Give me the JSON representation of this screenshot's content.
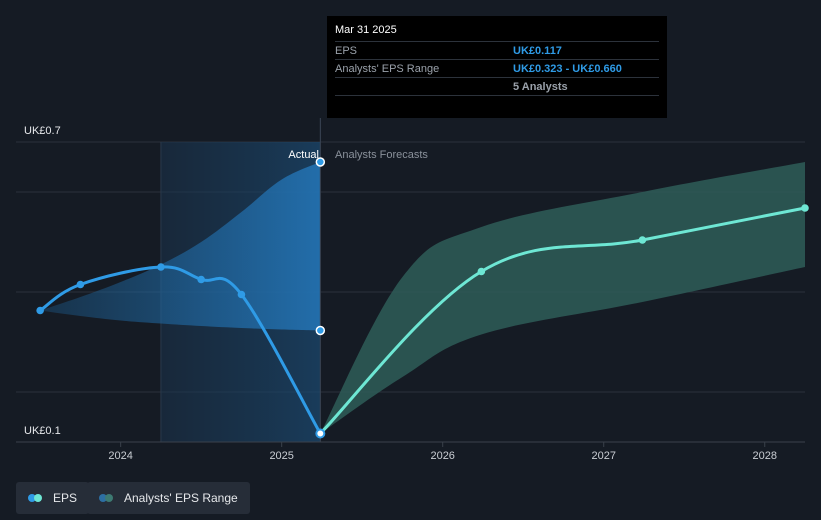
{
  "chart_data": {
    "type": "line",
    "y_axis": {
      "range": [
        0.1,
        0.7
      ],
      "tick_labels": [
        "UK£0.7",
        "UK£0.1"
      ]
    },
    "x_axis": {
      "range": [
        2023.35,
        2028.25
      ],
      "ticks": [
        2024,
        2025,
        2026,
        2027,
        2028
      ],
      "tick_labels": [
        "2024",
        "2025",
        "2026",
        "2027",
        "2028"
      ]
    },
    "grid": true,
    "region_labels": {
      "actual": "Actual",
      "forecast": "Analysts Forecasts"
    },
    "divider_x": 2025.24,
    "series": [
      {
        "name": "EPS",
        "color": "#2f9be6",
        "points": [
          {
            "x": 2023.5,
            "y": 0.363
          },
          {
            "x": 2023.75,
            "y": 0.415
          },
          {
            "x": 2024.25,
            "y": 0.45
          },
          {
            "x": 2024.5,
            "y": 0.425
          },
          {
            "x": 2024.75,
            "y": 0.395
          },
          {
            "x": 2025.24,
            "y": 0.117
          }
        ]
      },
      {
        "name": "EPS Forecast",
        "color": "#6ee7d4",
        "points": [
          {
            "x": 2025.24,
            "y": 0.117
          },
          {
            "x": 2026.24,
            "y": 0.441
          },
          {
            "x": 2027.24,
            "y": 0.504
          },
          {
            "x": 2028.25,
            "y": 0.568
          }
        ]
      }
    ],
    "historical_range": {
      "x": [
        2023.5,
        2023.75,
        2024.0,
        2024.25,
        2024.5,
        2024.75,
        2025.0,
        2025.24
      ],
      "upper": [
        0.363,
        0.39,
        0.42,
        0.455,
        0.5,
        0.56,
        0.625,
        0.66
      ],
      "lower": [
        0.363,
        0.352,
        0.343,
        0.337,
        0.332,
        0.328,
        0.325,
        0.323
      ]
    },
    "forecast_range": {
      "x": [
        2025.24,
        2025.75,
        2026.24,
        2027.24,
        2028.25
      ],
      "upper": [
        0.117,
        0.43,
        0.53,
        0.6,
        0.66
      ],
      "lower": [
        0.117,
        0.23,
        0.315,
        0.38,
        0.45
      ]
    },
    "highlight_band": [
      2024.25,
      2025.24
    ],
    "marker_points": [
      {
        "x": 2025.24,
        "y": 0.66
      },
      {
        "x": 2025.24,
        "y": 0.323
      }
    ],
    "legend": [
      {
        "label": "EPS",
        "colors": [
          "#2f9be6",
          "#6ee7d4"
        ]
      },
      {
        "label": "Analysts' EPS Range",
        "colors": [
          "#2d6fa3",
          "#3d7a72"
        ]
      }
    ]
  },
  "tooltip": {
    "date": "Mar 31 2025",
    "rows": [
      {
        "key": "EPS",
        "value": "UK£0.117"
      },
      {
        "key": "Analysts' EPS Range",
        "value": "UK£0.323 - UK£0.660"
      },
      {
        "key": "",
        "value": "5 Analysts"
      }
    ]
  }
}
